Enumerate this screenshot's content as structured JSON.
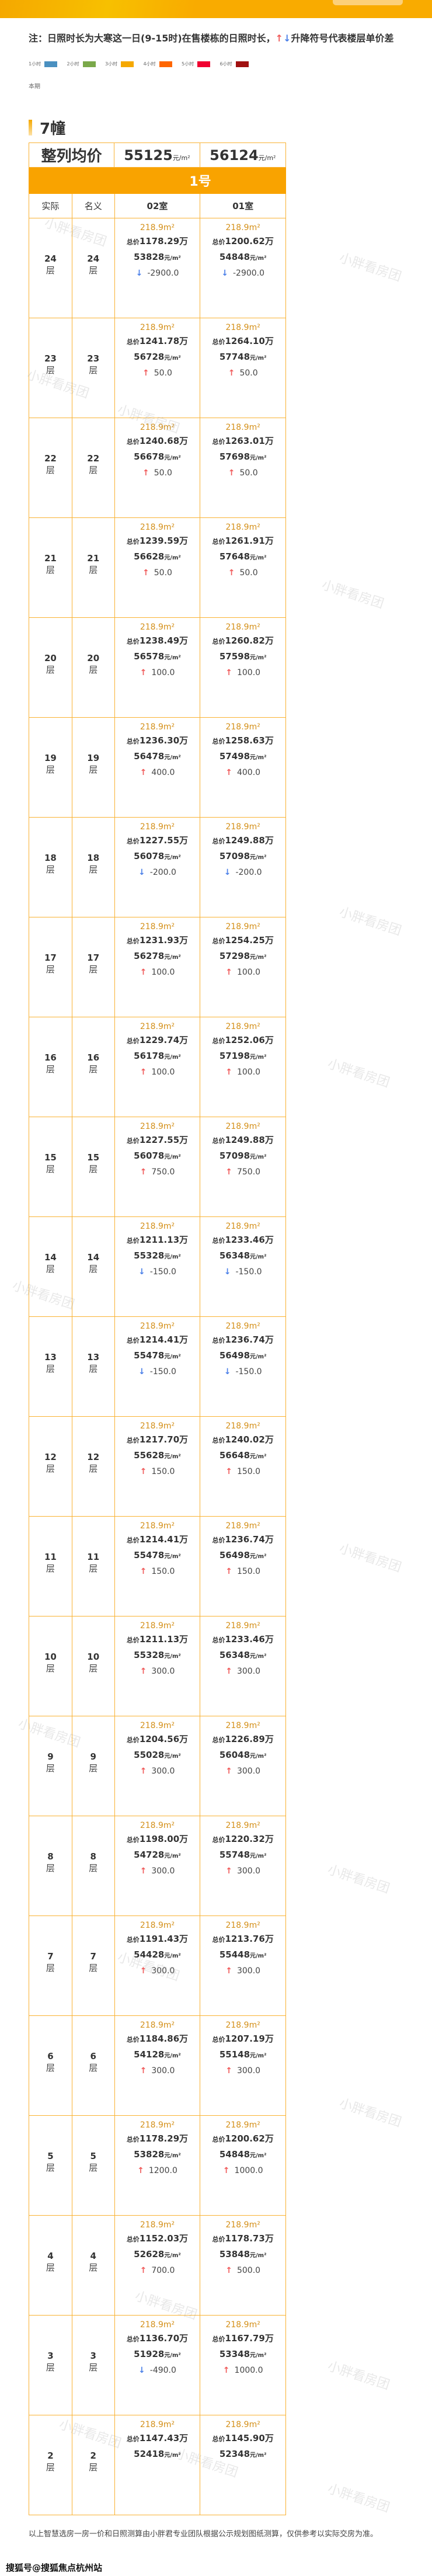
{
  "note": {
    "prefix": "注：日照时长为大寒这一日(9-15时)在售楼栋的日照时长，",
    "up_icon": "↑",
    "down_icon": "↓",
    "suffix": "升降符号代表楼层单价差"
  },
  "legend": [
    {
      "label": "1小时",
      "color": "#4a90c0"
    },
    {
      "label": "2小时",
      "color": "#7aa84a"
    },
    {
      "label": "3小时",
      "color": "#f5a800"
    },
    {
      "label": "4小时",
      "color": "#ff6600"
    },
    {
      "label": "5小时",
      "color": "#f00030"
    },
    {
      "label": "6小时",
      "color": "#a01010"
    }
  ],
  "period_label": "本期",
  "building": "7幢",
  "avg": {
    "label": "整列均价",
    "col02": "55125",
    "col01": "56124",
    "unit": "元/m²"
  },
  "unit_label": "1号",
  "headers": {
    "actual": "实际",
    "nominal": "名义",
    "room02": "02室",
    "room01": "01室"
  },
  "labels": {
    "floor_suffix": "层",
    "total_prefix": "总价",
    "total_suffix": "万",
    "price_unit": "元/m²"
  },
  "colors": {
    "accent": "#f9a300",
    "area": "#d4901a",
    "up": "#f05a5a",
    "down": "#4a7fe8"
  },
  "rows": [
    {
      "actual": "24",
      "nominal": "24",
      "r02": {
        "area": "218.9m²",
        "total": "1178.29",
        "price": "53828",
        "dir": "down",
        "diff": "-2900.0"
      },
      "r01": {
        "area": "218.9m²",
        "total": "1200.62",
        "price": "54848",
        "dir": "down",
        "diff": "-2900.0"
      }
    },
    {
      "actual": "23",
      "nominal": "23",
      "r02": {
        "area": "218.9m²",
        "total": "1241.78",
        "price": "56728",
        "dir": "up",
        "diff": "50.0"
      },
      "r01": {
        "area": "218.9m²",
        "total": "1264.10",
        "price": "57748",
        "dir": "up",
        "diff": "50.0"
      }
    },
    {
      "actual": "22",
      "nominal": "22",
      "r02": {
        "area": "218.9m²",
        "total": "1240.68",
        "price": "56678",
        "dir": "up",
        "diff": "50.0"
      },
      "r01": {
        "area": "218.9m²",
        "total": "1263.01",
        "price": "57698",
        "dir": "up",
        "diff": "50.0"
      }
    },
    {
      "actual": "21",
      "nominal": "21",
      "r02": {
        "area": "218.9m²",
        "total": "1239.59",
        "price": "56628",
        "dir": "up",
        "diff": "50.0"
      },
      "r01": {
        "area": "218.9m²",
        "total": "1261.91",
        "price": "57648",
        "dir": "up",
        "diff": "50.0"
      }
    },
    {
      "actual": "20",
      "nominal": "20",
      "r02": {
        "area": "218.9m²",
        "total": "1238.49",
        "price": "56578",
        "dir": "up",
        "diff": "100.0"
      },
      "r01": {
        "area": "218.9m²",
        "total": "1260.82",
        "price": "57598",
        "dir": "up",
        "diff": "100.0"
      }
    },
    {
      "actual": "19",
      "nominal": "19",
      "r02": {
        "area": "218.9m²",
        "total": "1236.30",
        "price": "56478",
        "dir": "up",
        "diff": "400.0"
      },
      "r01": {
        "area": "218.9m²",
        "total": "1258.63",
        "price": "57498",
        "dir": "up",
        "diff": "400.0"
      }
    },
    {
      "actual": "18",
      "nominal": "18",
      "r02": {
        "area": "218.9m²",
        "total": "1227.55",
        "price": "56078",
        "dir": "down",
        "diff": "-200.0"
      },
      "r01": {
        "area": "218.9m²",
        "total": "1249.88",
        "price": "57098",
        "dir": "down",
        "diff": "-200.0"
      }
    },
    {
      "actual": "17",
      "nominal": "17",
      "r02": {
        "area": "218.9m²",
        "total": "1231.93",
        "price": "56278",
        "dir": "up",
        "diff": "100.0"
      },
      "r01": {
        "area": "218.9m²",
        "total": "1254.25",
        "price": "57298",
        "dir": "up",
        "diff": "100.0"
      }
    },
    {
      "actual": "16",
      "nominal": "16",
      "r02": {
        "area": "218.9m²",
        "total": "1229.74",
        "price": "56178",
        "dir": "up",
        "diff": "100.0"
      },
      "r01": {
        "area": "218.9m²",
        "total": "1252.06",
        "price": "57198",
        "dir": "up",
        "diff": "100.0"
      }
    },
    {
      "actual": "15",
      "nominal": "15",
      "r02": {
        "area": "218.9m²",
        "total": "1227.55",
        "price": "56078",
        "dir": "up",
        "diff": "750.0"
      },
      "r01": {
        "area": "218.9m²",
        "total": "1249.88",
        "price": "57098",
        "dir": "up",
        "diff": "750.0"
      }
    },
    {
      "actual": "14",
      "nominal": "14",
      "r02": {
        "area": "218.9m²",
        "total": "1211.13",
        "price": "55328",
        "dir": "down",
        "diff": "-150.0"
      },
      "r01": {
        "area": "218.9m²",
        "total": "1233.46",
        "price": "56348",
        "dir": "down",
        "diff": "-150.0"
      }
    },
    {
      "actual": "13",
      "nominal": "13",
      "r02": {
        "area": "218.9m²",
        "total": "1214.41",
        "price": "55478",
        "dir": "down",
        "diff": "-150.0"
      },
      "r01": {
        "area": "218.9m²",
        "total": "1236.74",
        "price": "56498",
        "dir": "down",
        "diff": "-150.0"
      }
    },
    {
      "actual": "12",
      "nominal": "12",
      "r02": {
        "area": "218.9m²",
        "total": "1217.70",
        "price": "55628",
        "dir": "up",
        "diff": "150.0"
      },
      "r01": {
        "area": "218.9m²",
        "total": "1240.02",
        "price": "56648",
        "dir": "up",
        "diff": "150.0"
      }
    },
    {
      "actual": "11",
      "nominal": "11",
      "r02": {
        "area": "218.9m²",
        "total": "1214.41",
        "price": "55478",
        "dir": "up",
        "diff": "150.0"
      },
      "r01": {
        "area": "218.9m²",
        "total": "1236.74",
        "price": "56498",
        "dir": "up",
        "diff": "150.0"
      }
    },
    {
      "actual": "10",
      "nominal": "10",
      "r02": {
        "area": "218.9m²",
        "total": "1211.13",
        "price": "55328",
        "dir": "up",
        "diff": "300.0"
      },
      "r01": {
        "area": "218.9m²",
        "total": "1233.46",
        "price": "56348",
        "dir": "up",
        "diff": "300.0"
      }
    },
    {
      "actual": "9",
      "nominal": "9",
      "r02": {
        "area": "218.9m²",
        "total": "1204.56",
        "price": "55028",
        "dir": "up",
        "diff": "300.0"
      },
      "r01": {
        "area": "218.9m²",
        "total": "1226.89",
        "price": "56048",
        "dir": "up",
        "diff": "300.0"
      }
    },
    {
      "actual": "8",
      "nominal": "8",
      "r02": {
        "area": "218.9m²",
        "total": "1198.00",
        "price": "54728",
        "dir": "up",
        "diff": "300.0"
      },
      "r01": {
        "area": "218.9m²",
        "total": "1220.32",
        "price": "55748",
        "dir": "up",
        "diff": "300.0"
      }
    },
    {
      "actual": "7",
      "nominal": "7",
      "r02": {
        "area": "218.9m²",
        "total": "1191.43",
        "price": "54428",
        "dir": "up",
        "diff": "300.0"
      },
      "r01": {
        "area": "218.9m²",
        "total": "1213.76",
        "price": "55448",
        "dir": "up",
        "diff": "300.0"
      }
    },
    {
      "actual": "6",
      "nominal": "6",
      "r02": {
        "area": "218.9m²",
        "total": "1184.86",
        "price": "54128",
        "dir": "up",
        "diff": "300.0"
      },
      "r01": {
        "area": "218.9m²",
        "total": "1207.19",
        "price": "55148",
        "dir": "up",
        "diff": "300.0"
      }
    },
    {
      "actual": "5",
      "nominal": "5",
      "r02": {
        "area": "218.9m²",
        "total": "1178.29",
        "price": "53828",
        "dir": "up",
        "diff": "1200.0"
      },
      "r01": {
        "area": "218.9m²",
        "total": "1200.62",
        "price": "54848",
        "dir": "up",
        "diff": "1000.0"
      }
    },
    {
      "actual": "4",
      "nominal": "4",
      "r02": {
        "area": "218.9m²",
        "total": "1152.03",
        "price": "52628",
        "dir": "up",
        "diff": "700.0"
      },
      "r01": {
        "area": "218.9m²",
        "total": "1178.73",
        "price": "53848",
        "dir": "up",
        "diff": "500.0"
      }
    },
    {
      "actual": "3",
      "nominal": "3",
      "r02": {
        "area": "218.9m²",
        "total": "1136.70",
        "price": "51928",
        "dir": "down",
        "diff": "-490.0"
      },
      "r01": {
        "area": "218.9m²",
        "total": "1167.79",
        "price": "53348",
        "dir": "up",
        "diff": "1000.0"
      }
    },
    {
      "actual": "2",
      "nominal": "2",
      "r02": {
        "area": "218.9m²",
        "total": "1147.43",
        "price": "52418",
        "dir": "",
        "diff": ""
      },
      "r01": {
        "area": "218.9m²",
        "total": "1145.90",
        "price": "52348",
        "dir": "",
        "diff": ""
      }
    }
  ],
  "footer": "以上智慧选房一房一价和日照测算由小胖君专业团队根据公示规划图纸测算，仅供参考以实际交房为准。",
  "source": "搜狐号@搜狐焦点杭州站",
  "watermark": "小胖看房团"
}
